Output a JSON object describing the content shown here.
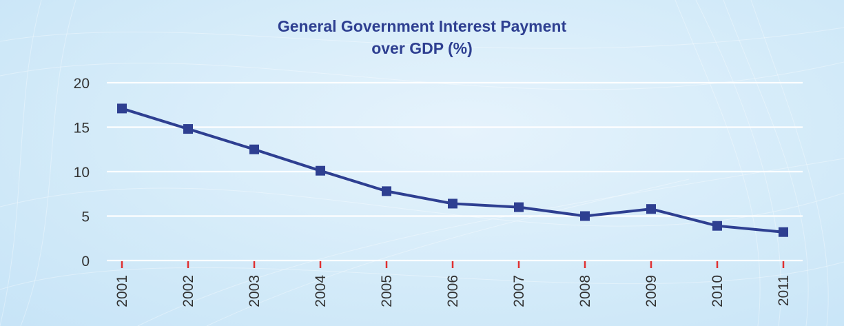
{
  "chart_data": {
    "type": "line",
    "title_lines": [
      "General Government Interest Payment",
      "over GDP (%)"
    ],
    "xlabel": "",
    "ylabel": "",
    "ylim": [
      0,
      20
    ],
    "yticks": [
      0,
      5,
      10,
      15,
      20
    ],
    "categories": [
      "2001",
      "2002",
      "2003",
      "2004",
      "2005",
      "2006",
      "2007",
      "2008",
      "2009",
      "2010",
      "2011"
    ],
    "series": [
      {
        "values": [
          17.1,
          14.8,
          12.5,
          10.1,
          7.8,
          6.4,
          6.0,
          5.0,
          5.8,
          3.9,
          3.2
        ]
      }
    ],
    "grid": true,
    "legend": "none",
    "colors": {
      "line": "#2e3f91",
      "marker": "#2e3f91",
      "tick_mark": "#e03030",
      "grid": "#ffffff",
      "title": "#2e3f91"
    }
  }
}
